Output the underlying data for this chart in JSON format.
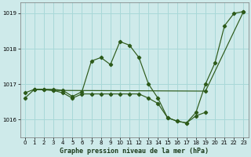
{
  "title": "Graphe pression niveau de la mer (hPa)",
  "bg_color": "#ceeaea",
  "grid_color": "#a8d8d8",
  "line_color": "#2d5a1a",
  "xlim": [
    -0.5,
    23.5
  ],
  "ylim": [
    1015.5,
    1019.3
  ],
  "yticks": [
    1016,
    1017,
    1018,
    1019
  ],
  "xticks": [
    0,
    1,
    2,
    3,
    4,
    5,
    6,
    7,
    8,
    9,
    10,
    11,
    12,
    13,
    14,
    15,
    16,
    17,
    18,
    19,
    20,
    21,
    22,
    23
  ],
  "series1_x": [
    0,
    1,
    2,
    3,
    4,
    5,
    6,
    7,
    8,
    9,
    10,
    11,
    12,
    13,
    14,
    15,
    16,
    17,
    18,
    19,
    20,
    21,
    22,
    23
  ],
  "series1_y": [
    1016.6,
    1016.85,
    1016.85,
    1016.85,
    1016.82,
    1016.65,
    1016.78,
    1017.65,
    1017.75,
    1017.55,
    1018.2,
    1018.1,
    1017.75,
    1017.0,
    1016.6,
    1016.05,
    1015.95,
    1015.9,
    1016.2,
    1017.0,
    1017.6,
    1018.65,
    1019.0,
    1019.05
  ],
  "series2_x": [
    0,
    1,
    2,
    3,
    4,
    5,
    6,
    7,
    8,
    9,
    10,
    11,
    12,
    13,
    14,
    15,
    16,
    17,
    18,
    19
  ],
  "series2_y": [
    1016.75,
    1016.85,
    1016.85,
    1016.82,
    1016.75,
    1016.6,
    1016.72,
    1016.72,
    1016.72,
    1016.72,
    1016.72,
    1016.72,
    1016.72,
    1016.6,
    1016.45,
    1016.05,
    1015.95,
    1015.9,
    1016.1,
    1016.2
  ],
  "series3_x": [
    1,
    3,
    19,
    23
  ],
  "series3_y": [
    1016.85,
    1016.82,
    1016.8,
    1019.05
  ]
}
